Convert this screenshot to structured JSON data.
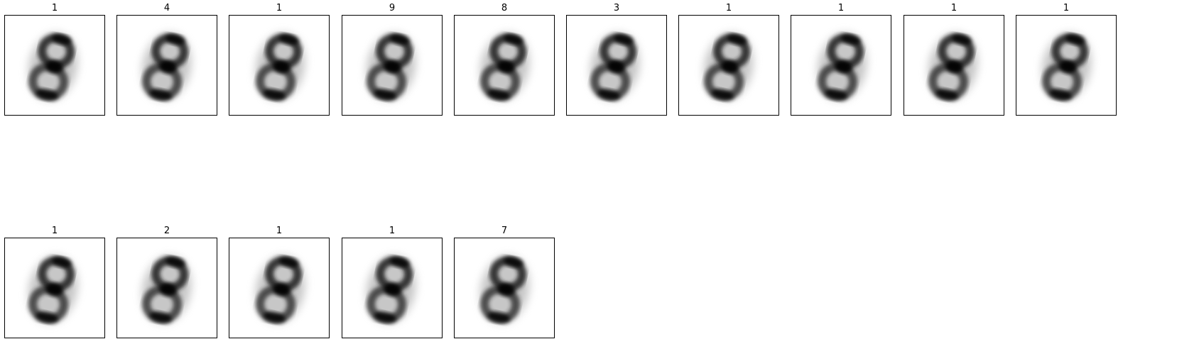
{
  "figure": {
    "panels": [
      {
        "label": "1"
      },
      {
        "label": "4"
      },
      {
        "label": "1"
      },
      {
        "label": "9"
      },
      {
        "label": "8"
      },
      {
        "label": "3"
      },
      {
        "label": "1"
      },
      {
        "label": "1"
      },
      {
        "label": "1"
      },
      {
        "label": "1"
      },
      {
        "label": "1"
      },
      {
        "label": "2"
      },
      {
        "label": "1"
      },
      {
        "label": "1"
      },
      {
        "label": "7"
      }
    ],
    "image_description_icon": "blurry-digit-image"
  }
}
